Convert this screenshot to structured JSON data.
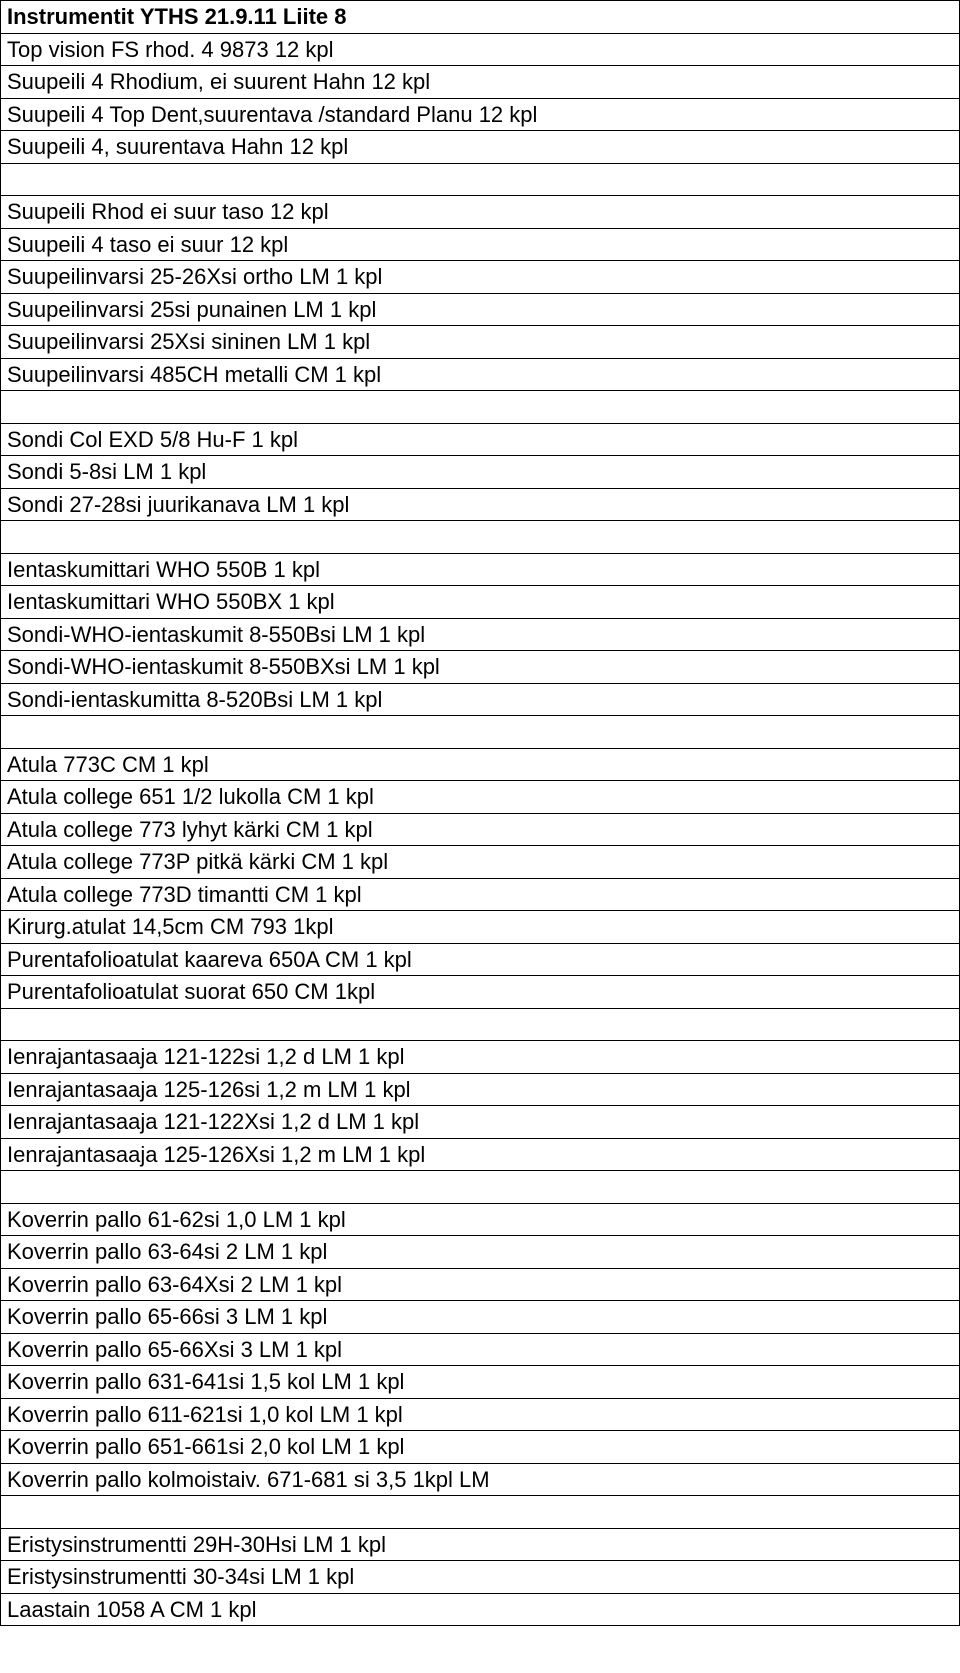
{
  "doc_title": "Instrumentit YTHS 21.9.11 Liite 8",
  "sections": [
    {
      "rows": [
        "Top vision FS rhod. 4 9873 12 kpl",
        "Suupeili 4 Rhodium, ei suurent Hahn      12 kpl",
        "Suupeili 4 Top Dent,suurentava /standard Planu      12 kpl",
        "Suupeili 4, suurentava      Hahn      12 kpl"
      ]
    },
    {
      "rows": [
        "Suupeili Rhod  ei suur taso       12 kpl",
        "Suupeili 4  taso ei suur           12 kpl",
        "Suupeilinvarsi 25-26Xsi ortho LM 1 kpl",
        "Suupeilinvarsi 25si punainen    LM        1 kpl",
        "Suupeilinvarsi 25Xsi sininen    LM        1 kpl",
        "Suupeilinvarsi 485CH metalli    CM        1 kpl"
      ]
    },
    {
      "rows": [
        "Sondi Col EXD  5/8              Hu-F        1 kpl",
        "Sondi 5-8si                        LM         1 kpl",
        "Sondi 27-28si  juurikanava       LM        1 kpl"
      ]
    },
    {
      "rows": [
        "Ientaskumittari WHO 550B 1 kpl",
        "Ientaskumittari WHO 550BX 1 kpl",
        "Sondi-WHO-ientaskumit 8-550Bsi   LM        1 kpl",
        "Sondi-WHO-ientaskumit 8-550BXsi  LM        1 kpl",
        "Sondi-ientaskumitta 8-520Bsi     LM        1 kpl"
      ]
    },
    {
      "rows": [
        "Atula 773C CM 1 kpl",
        "Atula college 651 1/2 lukolla     CM       1 kpl",
        "Atula college 773 lyhyt kärki     CM       1 kpl",
        "Atula college 773P pitkä kärki   CM        1 kpl",
        "Atula college 773D timantti      CM        1 kpl",
        "Kirurg.atulat 14,5cm   CM 793 1kpl",
        "Purentafolioatulat kaareva 650A CM 1 kpl",
        "Purentafolioatulat suorat 650  CM  1kpl"
      ]
    },
    {
      "rows": [
        "Ienrajantasaaja 121-122si 1,2 d  LM        1 kpl",
        "Ienrajantasaaja 125-126si 1,2 m  LM        1 kpl",
        "Ienrajantasaaja 121-122Xsi 1,2 d  LM        1 kpl",
        "Ienrajantasaaja 125-126Xsi 1,2 m  LM        1 kpl"
      ]
    },
    {
      "rows": [
        "Koverrin pallo 61-62si    1,0    LM         1 kpl",
        "Koverrin pallo 63-64si    2   LM         1 kpl",
        "Koverrin pallo 63-64Xsi    2   LM         1 kpl",
        "Koverrin pallo 65-66si    3   LM         1 kpl",
        "Koverrin pallo 65-66Xsi    3   LM         1 kpl",
        "Koverrin pallo 631-641si 1,5 kol LM         1 kpl",
        "Koverrin pallo 611-621si 1,0 kol LM         1 kpl",
        "Koverrin pallo 651-661si 2,0 kol LM         1 kpl",
        "Koverrin pallo kolmoistaiv. 671-681 si 3,5  1kpl     LM"
      ]
    },
    {
      "rows": [
        "Eristysinstrumentti 29H-30Hsi    LM        1 kpl",
        "Eristysinstrumentti 30-34si      LM        1 kpl",
        "Laastain 1058 A                     CM        1 kpl"
      ]
    }
  ]
}
